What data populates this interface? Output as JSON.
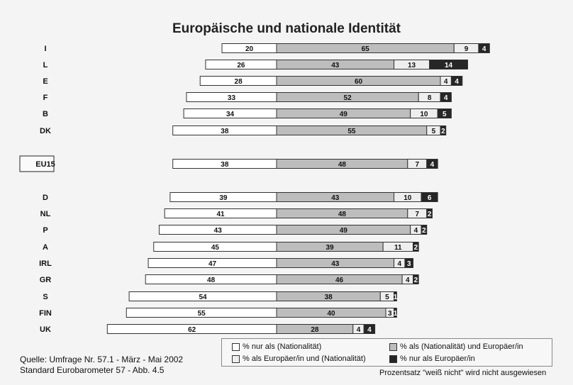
{
  "title": "Europäische und nationale Identität",
  "source_lines": [
    "Quelle: Umfrage Nr. 57.1 -  März - Mai 2002",
    "Standard Eurobarometer 57 - Abb. 4.5"
  ],
  "note": "Prozentsatz \"weiß nicht\" wird nicht ausgewiesen",
  "legend": [
    {
      "label": "% nur als (Nationalität)",
      "color": "#ffffff"
    },
    {
      "label": "% als (Nationalität) und Europäer/in",
      "color": "#bdbdbd"
    },
    {
      "label": "% als Europäer/in und (Nationalität)",
      "color": "#eeeeee"
    },
    {
      "label": "% nur als Europäer/in",
      "color": "#262626"
    }
  ],
  "chart_data": {
    "type": "bar",
    "orientation": "horizontal",
    "stacked": true,
    "categories": [
      "I",
      "L",
      "E",
      "F",
      "B",
      "DK",
      "EU15",
      "D",
      "NL",
      "P",
      "A",
      "IRL",
      "GR",
      "S",
      "FIN",
      "UK"
    ],
    "highlighted_category": "EU15",
    "series": [
      {
        "name": "% nur als (Nationalität)",
        "color": "#ffffff",
        "values": [
          20,
          26,
          28,
          33,
          34,
          38,
          38,
          39,
          41,
          43,
          45,
          47,
          48,
          54,
          55,
          62
        ]
      },
      {
        "name": "% als (Nationalität) und Europäer/in",
        "color": "#bdbdbd",
        "values": [
          65,
          43,
          60,
          52,
          49,
          55,
          48,
          43,
          48,
          49,
          39,
          43,
          46,
          38,
          40,
          28
        ]
      },
      {
        "name": "% als Europäer/in und (Nationalität)",
        "color": "#eeeeee",
        "values": [
          9,
          13,
          4,
          8,
          10,
          5,
          7,
          10,
          7,
          4,
          11,
          4,
          4,
          5,
          3,
          4
        ]
      },
      {
        "name": "% nur als Europäer/in",
        "color": "#262626",
        "values": [
          4,
          14,
          4,
          4,
          5,
          2,
          4,
          6,
          2,
          2,
          2,
          3,
          2,
          1,
          1,
          4
        ]
      }
    ]
  }
}
